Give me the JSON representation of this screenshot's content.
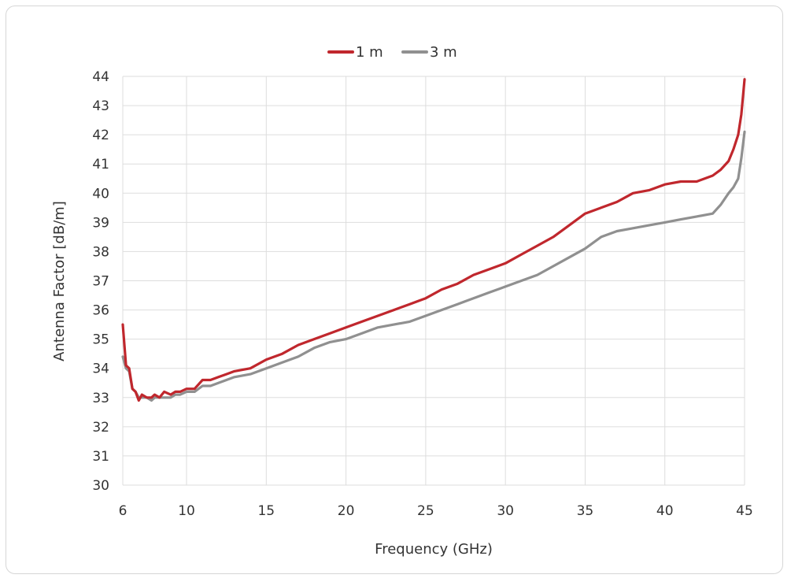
{
  "chart_data": {
    "type": "line",
    "title": "",
    "xlabel": "Frequency (GHz)",
    "ylabel": "Antenna Factor [dB/m]",
    "xlim": [
      6,
      45
    ],
    "ylim": [
      30,
      44
    ],
    "xticks": [
      6,
      10,
      15,
      20,
      25,
      30,
      35,
      40,
      45
    ],
    "yticks": [
      30,
      31,
      32,
      33,
      34,
      35,
      36,
      37,
      38,
      39,
      40,
      41,
      42,
      43,
      44
    ],
    "grid": true,
    "legend_position": "top-center",
    "series": [
      {
        "name": "1 m",
        "color": "#c0272d",
        "x": [
          6.0,
          6.2,
          6.4,
          6.6,
          6.8,
          7.0,
          7.2,
          7.5,
          7.8,
          8.0,
          8.3,
          8.6,
          9.0,
          9.3,
          9.6,
          10.0,
          10.5,
          11.0,
          11.5,
          12.0,
          12.5,
          13.0,
          14.0,
          15.0,
          16.0,
          17.0,
          18.0,
          19.0,
          20.0,
          21.0,
          22.0,
          23.0,
          24.0,
          25.0,
          26.0,
          27.0,
          28.0,
          29.0,
          30.0,
          31.0,
          32.0,
          33.0,
          34.0,
          35.0,
          36.0,
          37.0,
          38.0,
          39.0,
          40.0,
          41.0,
          42.0,
          43.0,
          43.5,
          44.0,
          44.3,
          44.6,
          44.8,
          45.0
        ],
        "y": [
          35.5,
          34.1,
          34.0,
          33.3,
          33.2,
          32.9,
          33.1,
          33.0,
          33.0,
          33.1,
          33.0,
          33.2,
          33.1,
          33.2,
          33.2,
          33.3,
          33.3,
          33.6,
          33.6,
          33.7,
          33.8,
          33.9,
          34.0,
          34.3,
          34.5,
          34.8,
          35.0,
          35.2,
          35.4,
          35.6,
          35.8,
          36.0,
          36.2,
          36.4,
          36.7,
          36.9,
          37.2,
          37.4,
          37.6,
          37.9,
          38.2,
          38.5,
          38.9,
          39.3,
          39.5,
          39.7,
          40.0,
          40.1,
          40.3,
          40.4,
          40.4,
          40.6,
          40.8,
          41.1,
          41.5,
          42.0,
          42.7,
          43.9
        ]
      },
      {
        "name": "3 m",
        "color": "#909090",
        "x": [
          6.0,
          6.2,
          6.4,
          6.6,
          6.8,
          7.0,
          7.2,
          7.5,
          7.8,
          8.0,
          8.3,
          8.6,
          9.0,
          9.3,
          9.6,
          10.0,
          10.5,
          11.0,
          11.5,
          12.0,
          12.5,
          13.0,
          14.0,
          15.0,
          16.0,
          17.0,
          18.0,
          19.0,
          20.0,
          21.0,
          22.0,
          23.0,
          24.0,
          25.0,
          26.0,
          27.0,
          28.0,
          29.0,
          30.0,
          31.0,
          32.0,
          33.0,
          34.0,
          35.0,
          36.0,
          37.0,
          38.0,
          39.0,
          40.0,
          41.0,
          42.0,
          43.0,
          43.5,
          44.0,
          44.3,
          44.6,
          44.8,
          45.0
        ],
        "y": [
          34.4,
          34.0,
          33.9,
          33.3,
          33.2,
          33.0,
          33.0,
          33.0,
          32.9,
          33.0,
          33.0,
          33.0,
          33.0,
          33.1,
          33.1,
          33.2,
          33.2,
          33.4,
          33.4,
          33.5,
          33.6,
          33.7,
          33.8,
          34.0,
          34.2,
          34.4,
          34.7,
          34.9,
          35.0,
          35.2,
          35.4,
          35.5,
          35.6,
          35.8,
          36.0,
          36.2,
          36.4,
          36.6,
          36.8,
          37.0,
          37.2,
          37.5,
          37.8,
          38.1,
          38.5,
          38.7,
          38.8,
          38.9,
          39.0,
          39.1,
          39.2,
          39.3,
          39.6,
          40.0,
          40.2,
          40.5,
          41.2,
          42.1
        ]
      }
    ]
  }
}
